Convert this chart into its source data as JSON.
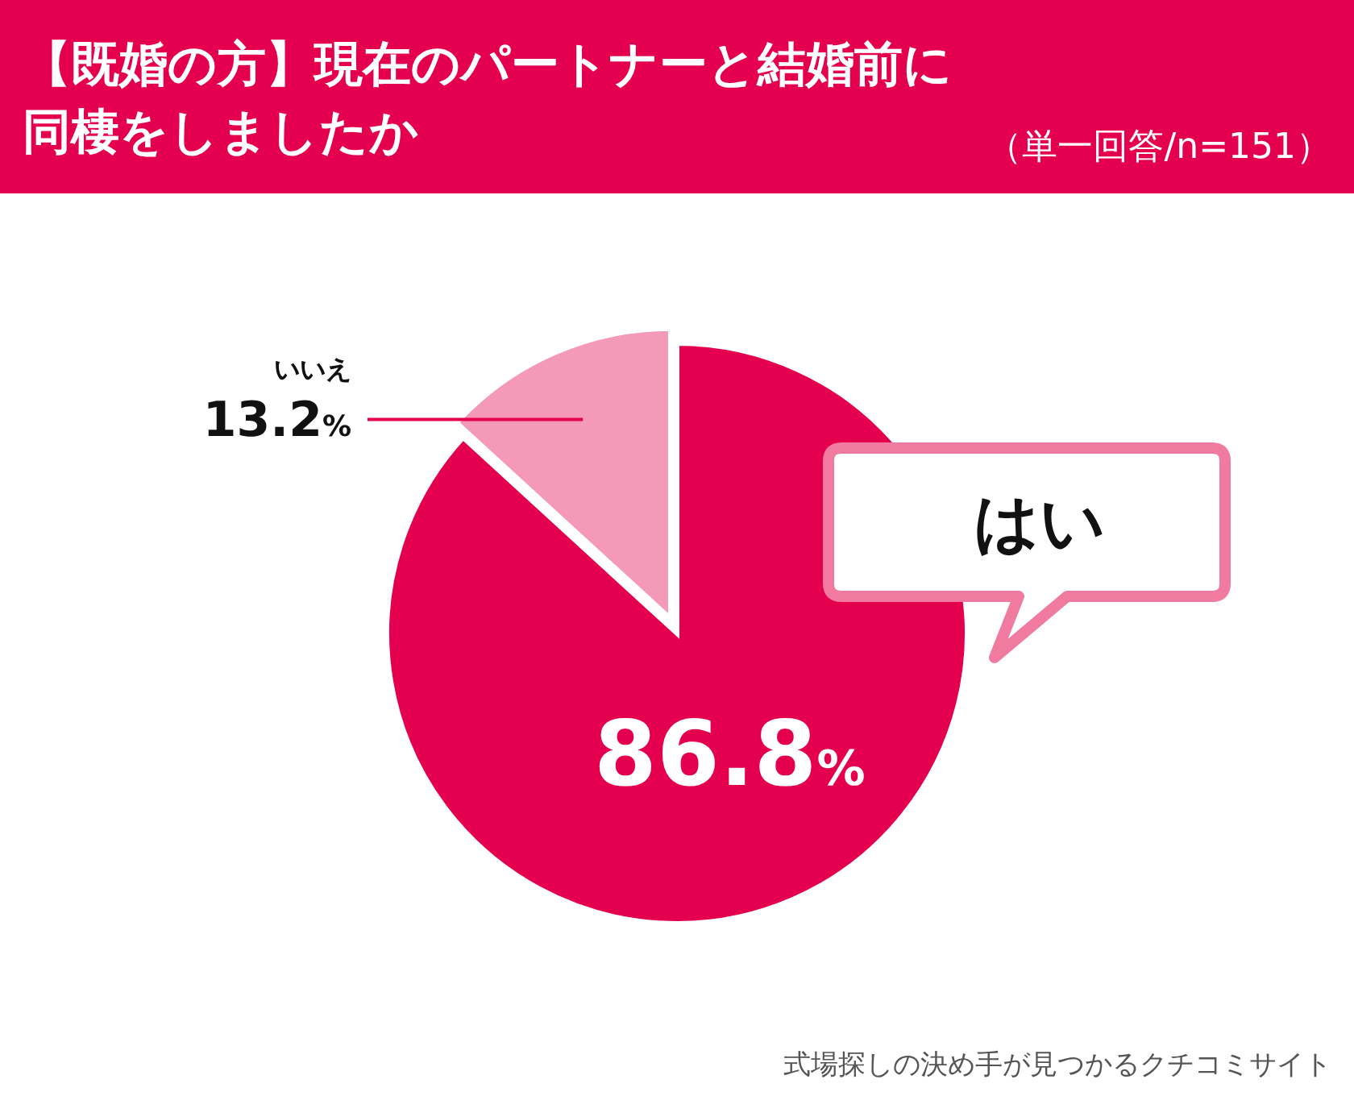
{
  "chart_data": {
    "type": "pie",
    "title": "【既婚の方】現在のパートナーと結婚前に同棲をしましたか",
    "subtitle": "（単一回答/n=151）",
    "categories": [
      "はい",
      "いいえ"
    ],
    "values": [
      86.8,
      13.2
    ],
    "colors": [
      "#e4004f",
      "#f49ab8"
    ],
    "value_labels": [
      "86.8%",
      "13.2%"
    ],
    "annotations": [
      "式場探しの決め手が見つかるクチコミサイト"
    ]
  }
}
